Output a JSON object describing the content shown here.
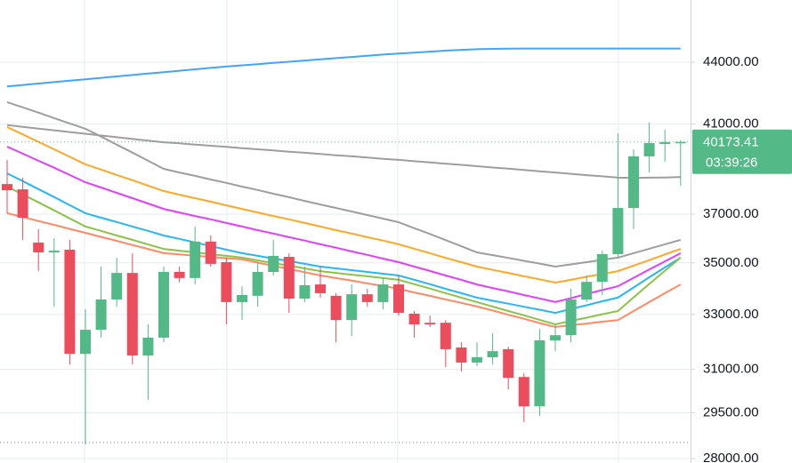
{
  "chart_data": {
    "type": "candlestick",
    "log_scale": true,
    "up_color": "#53b987",
    "down_color": "#eb4d5c",
    "ylim": [
      27860,
      47230
    ],
    "yticks": [
      {
        "value": 44000,
        "label": "44000.00"
      },
      {
        "value": 41000,
        "label": "41000.00"
      },
      {
        "value": 37000,
        "label": "37000.00"
      },
      {
        "value": 35000,
        "label": "35000.00"
      },
      {
        "value": 33000,
        "label": "33000.00"
      },
      {
        "value": 31000,
        "label": "31000.00"
      },
      {
        "value": 29500,
        "label": "29500.00"
      },
      {
        "value": 28000,
        "label": "28000.00"
      }
    ],
    "open": [
      38290,
      38060,
      35820,
      35420,
      35530,
      31550,
      32430,
      33570,
      34600,
      31490,
      32140,
      34640,
      34400,
      35860,
      35030,
      33470,
      33710,
      34640,
      35240,
      33600,
      34150,
      33710,
      32790,
      33770,
      33470,
      34150,
      33030,
      32690,
      32690,
      31780,
      31240,
      31430,
      31720,
      30730,
      29720,
      32040,
      32230,
      33570,
      34250,
      35350,
      37260,
      39520,
      40080,
      40120
    ],
    "high": [
      39360,
      38570,
      36370,
      36000,
      35930,
      33200,
      34850,
      35210,
      35380,
      32630,
      34850,
      34850,
      36480,
      36110,
      35210,
      34080,
      35030,
      35930,
      35380,
      34850,
      34850,
      33810,
      34150,
      33980,
      34430,
      34500,
      33130,
      32960,
      32790,
      31970,
      31970,
      32300,
      31810,
      30860,
      32460,
      32630,
      33980,
      34500,
      35490,
      40570,
      39840,
      41070,
      40740,
      40250
    ],
    "low": [
      37040,
      35930,
      34680,
      33300,
      31170,
      28455,
      32140,
      33300,
      31170,
      29940,
      31970,
      34230,
      34150,
      34850,
      32630,
      32790,
      33300,
      34500,
      33060,
      33470,
      33640,
      31970,
      32200,
      33300,
      33200,
      32960,
      32140,
      32530,
      31080,
      30920,
      31110,
      31170,
      30300,
      29190,
      29400,
      31650,
      31970,
      33470,
      33740,
      35210,
      36370,
      38800,
      39280,
      38220
    ],
    "close": [
      38020,
      36850,
      35420,
      35490,
      31550,
      32430,
      33570,
      34600,
      31490,
      32140,
      34640,
      34400,
      35860,
      34960,
      33470,
      33740,
      34640,
      35280,
      33600,
      34120,
      33810,
      32790,
      33770,
      33470,
      34150,
      33060,
      32630,
      32630,
      31720,
      31240,
      31430,
      31650,
      30700,
      29720,
      32040,
      32230,
      33570,
      34250,
      35350,
      37260,
      39520,
      40120,
      40160,
      40173.41
    ],
    "overlays": [
      {
        "color": "#42a5f5",
        "values": [
          42800,
          42870,
          42940,
          43010,
          43080,
          43150,
          43220,
          43290,
          43360,
          43430,
          43500,
          43570,
          43640,
          43710,
          43780,
          43840,
          43900,
          43960,
          44020,
          44080,
          44140,
          44200,
          44260,
          44320,
          44380,
          44430,
          44480,
          44530,
          44580,
          44620,
          44650,
          44670,
          44680,
          44690,
          44690,
          44690,
          44690,
          44690,
          44690,
          44690,
          44690,
          44690,
          44690,
          44690
        ]
      },
      {
        "color": "#9e9e9e",
        "values": [
          40950,
          40870,
          40790,
          40710,
          40630,
          40550,
          40470,
          40390,
          40310,
          40230,
          40160,
          40110,
          40050,
          40000,
          39950,
          39890,
          39840,
          39790,
          39730,
          39680,
          39630,
          39570,
          39520,
          39470,
          39410,
          39360,
          39300,
          39250,
          39190,
          39140,
          39080,
          39020,
          38970,
          38910,
          38850,
          38800,
          38740,
          38680,
          38630,
          38570,
          38560,
          38570,
          38580,
          38600
        ]
      },
      {
        "color": "#9e9e9e",
        "values": [
          42040,
          41790,
          41540,
          41280,
          41030,
          40780,
          40420,
          40050,
          39690,
          39320,
          38960,
          38800,
          38650,
          38490,
          38340,
          38180,
          38030,
          37870,
          37720,
          37560,
          37410,
          37260,
          37110,
          36960,
          36810,
          36660,
          36410,
          36170,
          35920,
          35670,
          35420,
          35310,
          35200,
          35080,
          34970,
          34850,
          34940,
          35030,
          35120,
          35210,
          35390,
          35570,
          35750,
          35930
        ]
      },
      {
        "color": "#ffa726",
        "values": [
          40860,
          40520,
          40180,
          39840,
          39500,
          39160,
          38930,
          38690,
          38460,
          38220,
          37990,
          37830,
          37680,
          37530,
          37370,
          37220,
          37070,
          36920,
          36780,
          36630,
          36480,
          36330,
          36190,
          36040,
          35900,
          35750,
          35570,
          35390,
          35200,
          35030,
          34850,
          34720,
          34600,
          34470,
          34350,
          34220,
          34330,
          34450,
          34560,
          34670,
          34890,
          35110,
          35340,
          35560
        ]
      },
      {
        "color": "#e040fb",
        "values": [
          39960,
          39640,
          39320,
          39010,
          38690,
          38370,
          38140,
          37910,
          37680,
          37450,
          37220,
          37070,
          36920,
          36780,
          36630,
          36480,
          36330,
          36190,
          36040,
          35900,
          35750,
          35610,
          35460,
          35320,
          35170,
          35030,
          34850,
          34680,
          34500,
          34330,
          34150,
          34010,
          33880,
          33740,
          33610,
          33470,
          33620,
          33780,
          33930,
          34080,
          34410,
          34740,
          35060,
          35390
        ]
      },
      {
        "color": "#29b6f6",
        "values": [
          38760,
          38420,
          38070,
          37730,
          37380,
          37040,
          36850,
          36670,
          36480,
          36300,
          36110,
          35970,
          35820,
          35680,
          35530,
          35390,
          35280,
          35170,
          35070,
          34960,
          34850,
          34780,
          34710,
          34640,
          34570,
          34500,
          34330,
          34160,
          33980,
          33810,
          33640,
          33520,
          33410,
          33290,
          33180,
          33060,
          33210,
          33350,
          33500,
          33640,
          34030,
          34430,
          34820,
          35210
        ]
      },
      {
        "color": "#8bc34a",
        "values": [
          38180,
          37840,
          37500,
          37160,
          36820,
          36480,
          36300,
          36110,
          35930,
          35740,
          35560,
          35490,
          35420,
          35350,
          35280,
          35210,
          35100,
          34990,
          34890,
          34780,
          34670,
          34600,
          34530,
          34470,
          34400,
          34330,
          34160,
          33990,
          33810,
          33640,
          33470,
          33300,
          33130,
          32970,
          32800,
          32630,
          32760,
          32880,
          33010,
          33130,
          33650,
          34170,
          34690,
          35210
        ]
      },
      {
        "color": "#ff8a65",
        "values": [
          37040,
          36880,
          36710,
          36550,
          36380,
          36220,
          36050,
          35890,
          35720,
          35560,
          35390,
          35340,
          35290,
          35240,
          35190,
          35140,
          35010,
          34880,
          34760,
          34630,
          34500,
          34400,
          34300,
          34190,
          34090,
          33980,
          33840,
          33710,
          33570,
          33440,
          33300,
          33150,
          32990,
          32840,
          32680,
          32530,
          32600,
          32660,
          32730,
          32790,
          33130,
          33470,
          33810,
          34150
        ]
      }
    ],
    "last_price": 40173.41,
    "countdown": "03:39:26"
  }
}
